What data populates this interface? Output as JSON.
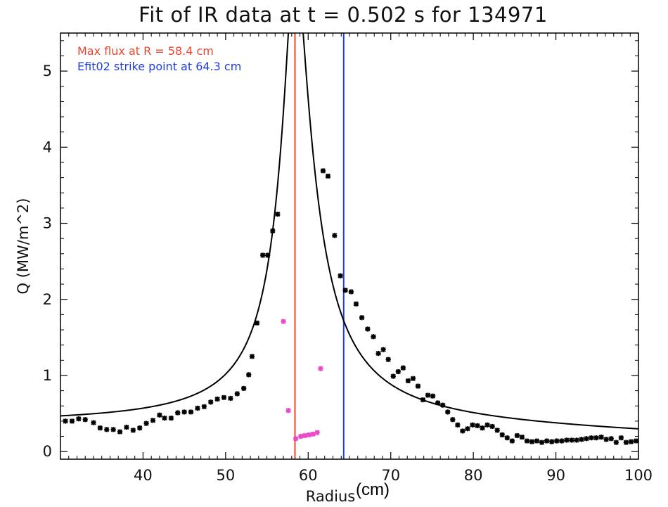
{
  "chart_data": {
    "type": "scatter",
    "title": "Fit of IR data at t = 0.502 s for 134971",
    "xlabel": "Radius",
    "xlabel_units": "(cm)",
    "ylabel": "Q (MW/m^2)",
    "xlim": [
      30,
      100
    ],
    "ylim": [
      -0.1,
      5.5
    ],
    "grid": false,
    "xticks": [
      40,
      50,
      60,
      70,
      80,
      90,
      100
    ],
    "yticks": [
      0,
      1,
      2,
      3,
      4,
      5
    ],
    "annotations": [
      {
        "text": "Max flux at R = 58.4 cm",
        "color": "#e8472e"
      },
      {
        "text": "Efit02 strike point at 64.3 cm",
        "color": "#1f3ee0"
      }
    ],
    "vertical_lines": [
      {
        "x": 58.4,
        "color": "#e8472e"
      },
      {
        "x": 64.3,
        "color": "#1f3ee0"
      }
    ],
    "fit": {
      "type": "line",
      "color": "#000000",
      "peak_x": 58.4,
      "peak_y": 6.3
    },
    "series": [
      {
        "color": "#000000",
        "marker": "asterisk",
        "points": [
          [
            30.6,
            0.4
          ],
          [
            31.4,
            0.4
          ],
          [
            32.2,
            0.43
          ],
          [
            33.0,
            0.42
          ],
          [
            34.0,
            0.38
          ],
          [
            34.8,
            0.31
          ],
          [
            35.6,
            0.29
          ],
          [
            36.4,
            0.29
          ],
          [
            37.2,
            0.26
          ],
          [
            38.0,
            0.32
          ],
          [
            38.8,
            0.28
          ],
          [
            39.6,
            0.31
          ],
          [
            40.4,
            0.37
          ],
          [
            41.2,
            0.41
          ],
          [
            42.0,
            0.48
          ],
          [
            42.6,
            0.44
          ],
          [
            43.4,
            0.44
          ],
          [
            44.2,
            0.51
          ],
          [
            45.0,
            0.52
          ],
          [
            45.8,
            0.52
          ],
          [
            46.6,
            0.57
          ],
          [
            47.4,
            0.59
          ],
          [
            48.2,
            0.65
          ],
          [
            49.0,
            0.69
          ],
          [
            49.8,
            0.71
          ],
          [
            50.6,
            0.7
          ],
          [
            51.4,
            0.76
          ],
          [
            52.2,
            0.83
          ],
          [
            52.8,
            1.01
          ],
          [
            53.2,
            1.25
          ],
          [
            53.8,
            1.69
          ],
          [
            54.5,
            2.58
          ],
          [
            55.1,
            2.58
          ],
          [
            55.7,
            2.9
          ],
          [
            56.3,
            3.12
          ],
          [
            61.8,
            3.69
          ],
          [
            62.4,
            3.62
          ],
          [
            63.2,
            2.84
          ],
          [
            63.9,
            2.31
          ],
          [
            64.5,
            2.12
          ],
          [
            65.2,
            2.1
          ],
          [
            65.8,
            1.94
          ],
          [
            66.5,
            1.76
          ],
          [
            67.2,
            1.61
          ],
          [
            67.9,
            1.51
          ],
          [
            68.5,
            1.29
          ],
          [
            69.1,
            1.34
          ],
          [
            69.7,
            1.21
          ],
          [
            70.3,
            0.99
          ],
          [
            70.9,
            1.05
          ],
          [
            71.5,
            1.1
          ],
          [
            72.1,
            0.93
          ],
          [
            72.7,
            0.96
          ],
          [
            73.3,
            0.86
          ],
          [
            73.9,
            0.68
          ],
          [
            74.5,
            0.74
          ],
          [
            75.1,
            0.73
          ],
          [
            75.7,
            0.64
          ],
          [
            76.3,
            0.61
          ],
          [
            76.9,
            0.52
          ],
          [
            77.5,
            0.42
          ],
          [
            78.1,
            0.35
          ],
          [
            78.7,
            0.27
          ],
          [
            79.3,
            0.3
          ],
          [
            79.9,
            0.35
          ],
          [
            80.5,
            0.34
          ],
          [
            81.1,
            0.31
          ],
          [
            81.7,
            0.35
          ],
          [
            82.3,
            0.33
          ],
          [
            82.9,
            0.28
          ],
          [
            83.5,
            0.22
          ],
          [
            84.1,
            0.18
          ],
          [
            84.7,
            0.14
          ],
          [
            85.3,
            0.21
          ],
          [
            85.9,
            0.19
          ],
          [
            86.5,
            0.14
          ],
          [
            87.1,
            0.13
          ],
          [
            87.7,
            0.14
          ],
          [
            88.3,
            0.12
          ],
          [
            88.9,
            0.14
          ],
          [
            89.5,
            0.13
          ],
          [
            90.1,
            0.14
          ],
          [
            90.7,
            0.14
          ],
          [
            91.3,
            0.15
          ],
          [
            91.9,
            0.15
          ],
          [
            92.5,
            0.15
          ],
          [
            93.1,
            0.16
          ],
          [
            93.7,
            0.17
          ],
          [
            94.3,
            0.18
          ],
          [
            94.9,
            0.18
          ],
          [
            95.5,
            0.19
          ],
          [
            96.1,
            0.16
          ],
          [
            96.7,
            0.17
          ],
          [
            97.3,
            0.12
          ],
          [
            97.9,
            0.18
          ],
          [
            98.5,
            0.12
          ],
          [
            99.1,
            0.13
          ],
          [
            99.7,
            0.14
          ]
        ]
      },
      {
        "color": "#ea4bc9",
        "marker": "asterisk",
        "points": [
          [
            57.0,
            1.71
          ],
          [
            57.6,
            0.54
          ],
          [
            58.5,
            0.17
          ],
          [
            59.1,
            0.2
          ],
          [
            59.6,
            0.21
          ],
          [
            60.1,
            0.22
          ],
          [
            60.6,
            0.23
          ],
          [
            61.1,
            0.25
          ],
          [
            61.5,
            1.09
          ]
        ]
      }
    ]
  }
}
